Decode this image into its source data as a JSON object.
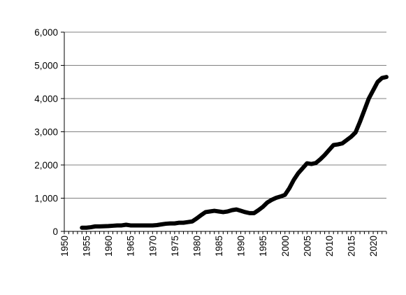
{
  "chart_data": {
    "type": "line",
    "title": "",
    "xlabel": "",
    "ylabel": "",
    "xlim": [
      1950,
      2023
    ],
    "ylim": [
      0,
      6000
    ],
    "x_ticks": [
      "1950",
      "1955",
      "1960",
      "1965",
      "1970",
      "1975",
      "1980",
      "1985",
      "1990",
      "1995",
      "2000",
      "2005",
      "2010",
      "2015",
      "2020"
    ],
    "y_ticks": [
      "0",
      "1,000",
      "2,000",
      "3,000",
      "4,000",
      "5,000",
      "6,000"
    ],
    "grid": "horizontal",
    "legend": "none",
    "line_color": "#000000",
    "series": [
      {
        "x": [
          1954,
          1955,
          1956,
          1957,
          1958,
          1959,
          1960,
          1961,
          1962,
          1963,
          1964,
          1965,
          1966,
          1967,
          1968,
          1969,
          1970,
          1971,
          1972,
          1973,
          1974,
          1975,
          1976,
          1977,
          1978,
          1979,
          1980,
          1981,
          1982,
          1983,
          1984,
          1985,
          1986,
          1987,
          1988,
          1989,
          1990,
          1991,
          1992,
          1993,
          1994,
          1995,
          1996,
          1997,
          1998,
          1999,
          2000,
          2001,
          2002,
          2003,
          2004,
          2005,
          2006,
          2007,
          2008,
          2009,
          2010,
          2011,
          2012,
          2013,
          2014,
          2015,
          2016,
          2017,
          2018,
          2019,
          2020,
          2021,
          2022,
          2023
        ],
        "y": [
          110,
          110,
          125,
          150,
          150,
          155,
          160,
          170,
          180,
          180,
          200,
          180,
          180,
          180,
          180,
          180,
          180,
          190,
          210,
          230,
          240,
          240,
          260,
          260,
          280,
          300,
          390,
          490,
          580,
          600,
          620,
          600,
          580,
          600,
          640,
          660,
          620,
          580,
          550,
          550,
          640,
          740,
          870,
          950,
          1010,
          1050,
          1100,
          1300,
          1550,
          1750,
          1900,
          2050,
          2030,
          2060,
          2170,
          2300,
          2450,
          2600,
          2620,
          2650,
          2750,
          2850,
          2980,
          3300,
          3650,
          4000,
          4250,
          4500,
          4620,
          4650
        ]
      }
    ]
  }
}
